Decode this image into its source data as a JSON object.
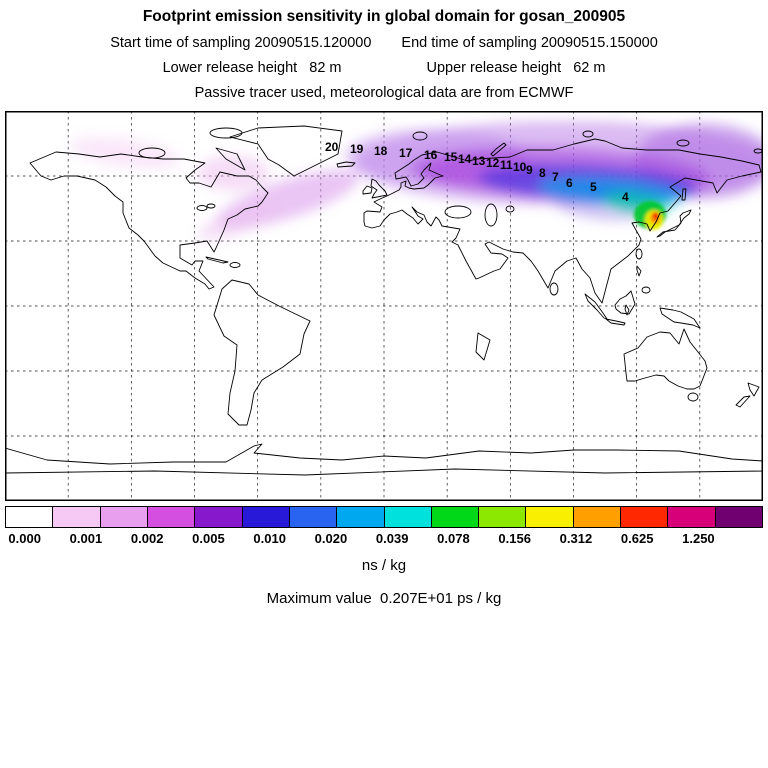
{
  "header": {
    "title": "Footprint emission sensitivity in global domain for gosan_200905",
    "start_time": "Start time of sampling 20090515.120000",
    "end_time": "End time of sampling 20090515.150000",
    "lower_release": "Lower release height   82 m",
    "upper_release": "Upper release height   62 m",
    "tracer_note": "Passive tracer used, meteorological data are from ECMWF"
  },
  "chart_data": {
    "type": "heatmap",
    "title": "Footprint emission sensitivity in global domain for gosan_200905",
    "station": "gosan_200905",
    "sampling_start": "20090515.120000",
    "sampling_end": "20090515.150000",
    "lower_release_height_m": 82,
    "upper_release_height_m": 62,
    "meteorology": "ECMWF",
    "tracer": "Passive tracer",
    "projection": "global latitude-longitude domain, dashed 30-degree graticule",
    "colorbar": {
      "ticks": [
        "0.000",
        "0.001",
        "0.002",
        "0.005",
        "0.010",
        "0.020",
        "0.039",
        "0.078",
        "0.156",
        "0.312",
        "0.625",
        "1.250"
      ],
      "colors": [
        "#ffffff",
        "#f6c8f4",
        "#e8a0ee",
        "#d44fe0",
        "#8818cc",
        "#2818d8",
        "#2864f0",
        "#00a8f0",
        "#00e0dc",
        "#00d818",
        "#8ce800",
        "#f8f000",
        "#ffa000",
        "#ff2800",
        "#d80078",
        "#700070"
      ],
      "units": "ns / kg"
    },
    "max_value_label": "Maximum value  0.207E+01 ps / kg",
    "trajectory_hours": [
      "20",
      "19",
      "18",
      "17",
      "16",
      "15",
      "14",
      "13",
      "12",
      "11",
      "10",
      "9",
      "8",
      "7",
      "6",
      "5",
      "4"
    ],
    "hotspot": {
      "name": "receptor maximum near Gosan",
      "approx_lon": 126,
      "approx_lat": 34
    }
  }
}
